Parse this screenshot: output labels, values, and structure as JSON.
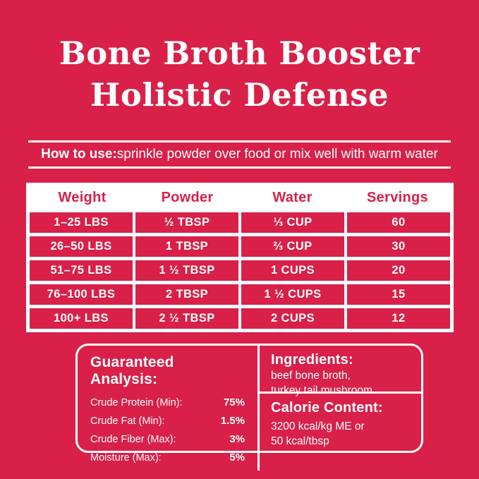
{
  "colors": {
    "background": "#d82049",
    "text_light": "#ffffff",
    "table_panel": "#ffffff",
    "table_header_text": "#d82049"
  },
  "title": {
    "line1": "Bone Broth Booster",
    "line2": "Holistic Defense"
  },
  "how_to_use": {
    "label": "How to use:",
    "text": "sprinkle powder over food or mix well with warm water"
  },
  "dosing_table": {
    "headers": [
      "Weight",
      "Powder",
      "Water",
      "Servings"
    ],
    "rows": [
      [
        "1–25 LBS",
        "½ TBSP",
        "⅓ CUP",
        "60"
      ],
      [
        "26–50 LBS",
        "1 TBSP",
        "⅔ CUP",
        "30"
      ],
      [
        "51–75 LBS",
        "1 ½ TBSP",
        "1 CUPS",
        "20"
      ],
      [
        "76–100 LBS",
        "2 TBSP",
        "1 ½ CUPS",
        "15"
      ],
      [
        "100+ LBS",
        "2 ½ TBSP",
        "2 CUPS",
        "12"
      ]
    ]
  },
  "guaranteed_analysis": {
    "title": "Guaranteed Analysis:",
    "rows": [
      {
        "label": "Crude Protein (Min):",
        "value": "75%"
      },
      {
        "label": "Crude Fat (Min):",
        "value": "1.5%"
      },
      {
        "label": "Crude Fiber (Max):",
        "value": "3%"
      },
      {
        "label": "Moisture (Max):",
        "value": "5%"
      }
    ]
  },
  "ingredients": {
    "title": "Ingredients:",
    "lines": [
      "beef bone broth,",
      "turkey tail mushroom"
    ]
  },
  "calorie_content": {
    "title": "Calorie Content:",
    "lines": [
      "3200 kcal/kg ME or",
      "50 kcal/tbsp"
    ]
  }
}
